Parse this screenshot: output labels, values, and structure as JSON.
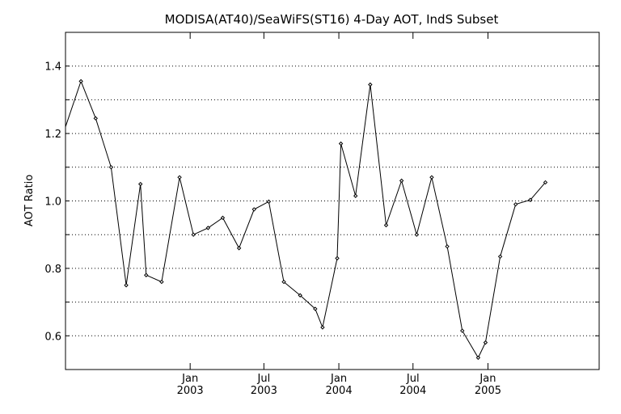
{
  "chart_data": {
    "type": "line",
    "title": "MODISA(AT40)/SeaWiFS(ST16) 4-Day AOT, IndS Subset",
    "xlabel": "",
    "ylabel": "AOT Ratio",
    "ylim": [
      0.5,
      1.5
    ],
    "xlim": [
      "2002-03-01",
      "2005-10-01"
    ],
    "yticks": [
      {
        "value": 0.6,
        "label": "0.6"
      },
      {
        "value": 0.8,
        "label": "0.8"
      },
      {
        "value": 1.0,
        "label": "1.0"
      },
      {
        "value": 1.2,
        "label": "1.2"
      },
      {
        "value": 1.4,
        "label": "1.4"
      }
    ],
    "ygrid": [
      0.6,
      0.7,
      0.8,
      0.9,
      1.0,
      1.1,
      1.2,
      1.3,
      1.4
    ],
    "xticks": [
      {
        "date": "2003-01-01",
        "month": "Jan",
        "year": "2003"
      },
      {
        "date": "2003-07-01",
        "month": "Jul",
        "year": "2003"
      },
      {
        "date": "2004-01-01",
        "month": "Jan",
        "year": "2004"
      },
      {
        "date": "2004-07-01",
        "month": "Jul",
        "year": "2004"
      },
      {
        "date": "2005-01-01",
        "month": "Jan",
        "year": "2005"
      }
    ],
    "grid": "horizontal dotted",
    "series": [
      {
        "color": "#000000",
        "points": [
          {
            "x": "2002-03-01",
            "y": 1.22
          },
          {
            "x": "2002-04-08",
            "y": 1.355
          },
          {
            "x": "2002-05-14",
            "y": 1.245
          },
          {
            "x": "2002-06-21",
            "y": 1.1
          },
          {
            "x": "2002-07-28",
            "y": 0.75
          },
          {
            "x": "2002-09-01",
            "y": 1.05
          },
          {
            "x": "2002-09-15",
            "y": 0.78
          },
          {
            "x": "2002-10-23",
            "y": 0.76
          },
          {
            "x": "2002-12-06",
            "y": 1.07
          },
          {
            "x": "2003-01-09",
            "y": 0.9
          },
          {
            "x": "2003-02-14",
            "y": 0.92
          },
          {
            "x": "2003-03-22",
            "y": 0.95
          },
          {
            "x": "2003-05-01",
            "y": 0.86
          },
          {
            "x": "2003-06-07",
            "y": 0.975
          },
          {
            "x": "2003-07-13",
            "y": 0.998
          },
          {
            "x": "2003-08-19",
            "y": 0.76
          },
          {
            "x": "2003-09-28",
            "y": 0.72
          },
          {
            "x": "2003-11-04",
            "y": 0.68
          },
          {
            "x": "2003-11-22",
            "y": 0.625
          },
          {
            "x": "2003-12-28",
            "y": 0.83
          },
          {
            "x": "2004-01-06",
            "y": 1.17
          },
          {
            "x": "2004-02-11",
            "y": 1.015
          },
          {
            "x": "2004-03-18",
            "y": 1.345
          },
          {
            "x": "2004-04-26",
            "y": 0.928
          },
          {
            "x": "2004-06-03",
            "y": 1.06
          },
          {
            "x": "2004-07-10",
            "y": 0.9
          },
          {
            "x": "2004-08-16",
            "y": 1.07
          },
          {
            "x": "2004-09-23",
            "y": 0.865
          },
          {
            "x": "2004-10-30",
            "y": 0.615
          },
          {
            "x": "2004-12-08",
            "y": 0.535
          },
          {
            "x": "2004-12-26",
            "y": 0.58
          },
          {
            "x": "2005-01-31",
            "y": 0.835
          },
          {
            "x": "2005-03-10",
            "y": 0.99
          },
          {
            "x": "2005-04-15",
            "y": 1.003
          },
          {
            "x": "2005-05-22",
            "y": 1.055
          }
        ]
      }
    ]
  }
}
